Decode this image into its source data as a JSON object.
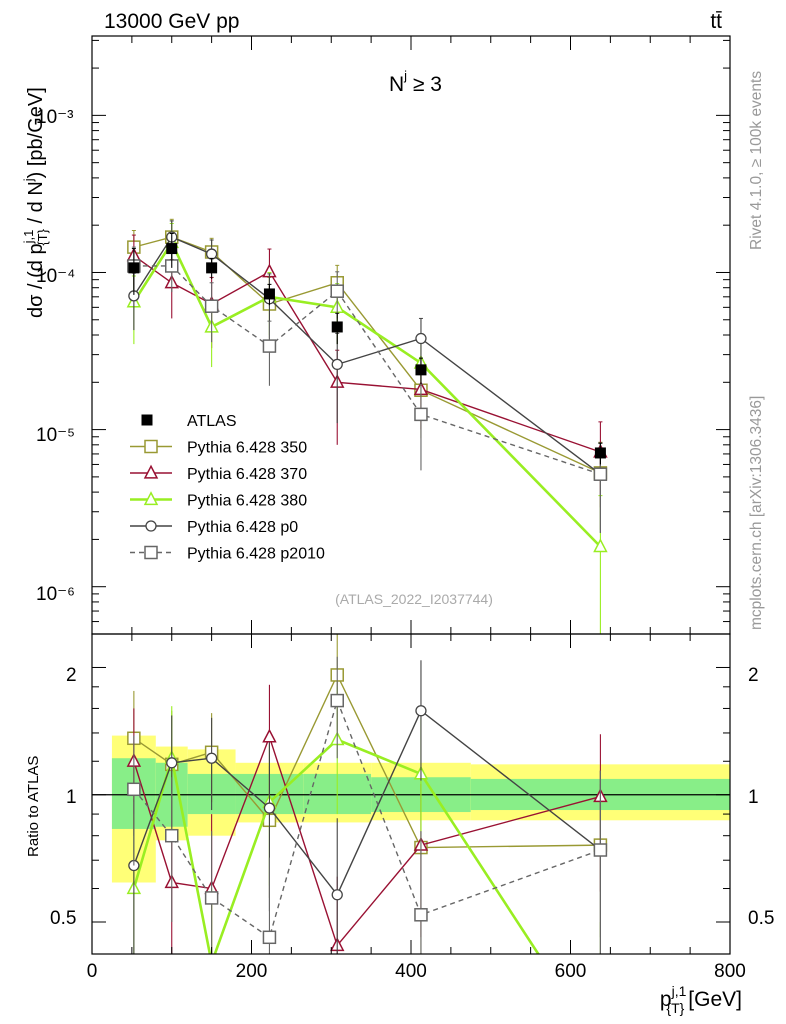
{
  "header": {
    "process": "13000 GeV pp",
    "process_label": "tt̄",
    "channel_label": "N",
    "channel_sup": "j",
    "channel_cond": " ≥ 3"
  },
  "side_labels": {
    "rivet": "Rivet 4.1.0, ≥ 100k events",
    "mcplots": "mcplots.cern.ch [arXiv:1306.3436]"
  },
  "analysis_id": "(ATLAS_2022_I2037744)",
  "axes": {
    "main_ylabel": "dσ / (d p_{T}^{j,1} / d N^{j}) [pb/GeV]",
    "ratio_ylabel": "Ratio to ATLAS",
    "xlabel": "p_{T}^{j,1} [GeV]",
    "x_ticks": [
      "0",
      "200",
      "400",
      "600",
      "800"
    ],
    "main_ticks": [
      "10⁻³",
      "10⁻⁴",
      "10⁻⁵",
      "10⁻⁶"
    ],
    "ratio_ticks": [
      "2",
      "1",
      "0.5"
    ]
  },
  "chart_data": [
    {
      "type": "line",
      "title": "N^j ≥ 3",
      "xlabel": "p_T^{j,1} [GeV]",
      "ylabel": "dσ / (d p_T^{j,1} / d N^j) [pb/GeV]",
      "yscale": "log",
      "xlim": [
        0,
        800
      ],
      "ylim": [
        5e-07,
        0.0032
      ],
      "legend": "middle-left",
      "bins": [
        [
          25,
          80
        ],
        [
          80,
          120
        ],
        [
          120,
          180
        ],
        [
          180,
          265
        ],
        [
          265,
          350
        ],
        [
          350,
          475
        ],
        [
          475,
          800
        ]
      ],
      "x": [
        52.5,
        100,
        150,
        222.5,
        307.5,
        412.5,
        637.5
      ],
      "series": [
        {
          "name": "ATLAS",
          "values": [
            0.000107,
            0.000142,
            0.000107,
            7.3e-05,
            4.5e-05,
            2.4e-05,
            7.1e-06
          ],
          "err": [
            3.5e-05,
            3.5e-05,
            1.6e-05,
            1.1e-05,
            1e-05,
            4.5e-06,
            1.1e-06
          ],
          "color": "#000000",
          "marker": "filled-square"
        },
        {
          "name": "Pythia 6.428 350",
          "values": [
            0.000145,
            0.000168,
            0.000135,
            6.3e-05,
            8.6e-05,
            1.78e-05,
            5.3e-06
          ],
          "err": [
            4e-05,
            5e-05,
            3e-05,
            3e-05,
            2.5e-05,
            9e-06,
            3e-06
          ],
          "color": "#999933",
          "marker": "open-square"
        },
        {
          "name": "Pythia 6.428 370",
          "values": [
            0.000128,
            8.6e-05,
            6.3e-05,
            0.000101,
            2e-05,
            1.8e-05,
            7.2e-06
          ],
          "err": [
            4.5e-05,
            3.5e-05,
            3e-05,
            4e-05,
            1.2e-05,
            8e-06,
            4e-06
          ],
          "color": "#991133",
          "marker": "open-triangle"
        },
        {
          "name": "Pythia 6.428 380",
          "values": [
            6.5e-05,
            0.000155,
            4.5e-05,
            7e-05,
            6e-05,
            2.65e-05,
            1.8e-06
          ],
          "err": [
            3e-05,
            5e-05,
            2e-05,
            3e-05,
            2.5e-05,
            1e-05,
            2e-06
          ],
          "color": "#99ee22",
          "marker": "open-triangle"
        },
        {
          "name": "Pythia 6.428 p0",
          "values": [
            7.1e-05,
            0.000168,
            0.000131,
            6.8e-05,
            2.6e-05,
            3.8e-05,
            5.2e-06
          ],
          "err": [
            2.8e-05,
            4.5e-05,
            3e-05,
            3e-05,
            1.5e-05,
            1.3e-05,
            3e-06
          ],
          "color": "#444444",
          "marker": "open-circle"
        },
        {
          "name": "Pythia 6.428 p2010",
          "values": [
            0.00011,
            0.00011,
            6.1e-05,
            3.4e-05,
            7.6e-05,
            1.25e-05,
            5.2e-06
          ],
          "err": [
            3.5e-05,
            3.5e-05,
            2.5e-05,
            1.5e-05,
            2.5e-05,
            7e-06,
            3e-06
          ],
          "color": "#666666",
          "marker": "open-square",
          "dashed": true
        }
      ]
    },
    {
      "type": "line",
      "title": "Ratio to ATLAS",
      "ylabel": "Ratio to ATLAS",
      "yscale": "log",
      "xlim": [
        0,
        800
      ],
      "ylim": [
        0.42,
        2.4
      ],
      "reference_band": {
        "bins": [
          [
            25,
            80
          ],
          [
            80,
            120
          ],
          [
            120,
            180
          ],
          [
            180,
            265
          ],
          [
            265,
            350
          ],
          [
            350,
            475
          ],
          [
            475,
            800
          ]
        ],
        "stat": [
          [
            0.83,
            1.22
          ],
          [
            0.84,
            1.19
          ],
          [
            0.9,
            1.12
          ],
          [
            0.9,
            1.12
          ],
          [
            0.9,
            1.12
          ],
          [
            0.91,
            1.1
          ],
          [
            0.92,
            1.09
          ]
        ],
        "total": [
          [
            0.62,
            1.38
          ],
          [
            0.78,
            1.3
          ],
          [
            0.8,
            1.28
          ],
          [
            0.86,
            1.19
          ],
          [
            0.86,
            1.19
          ],
          [
            0.87,
            1.19
          ],
          [
            0.87,
            1.18
          ]
        ]
      },
      "series": [
        {
          "name": "Pythia 6.428 350",
          "values": [
            1.36,
            1.18,
            1.26,
            0.87,
            1.92,
            0.75,
            0.76
          ],
          "err": [
            0.4,
            0.4,
            0.3,
            0.3,
            0.5,
            0.35,
            0.3
          ]
        },
        {
          "name": "Pythia 6.428 370",
          "values": [
            1.2,
            0.62,
            0.6,
            1.37,
            0.44,
            0.76,
            0.99
          ],
          "err": [
            0.4,
            0.3,
            0.3,
            0.45,
            0.2,
            0.3,
            0.4
          ]
        },
        {
          "name": "Pythia 6.428 380",
          "values": [
            0.6,
            1.22,
            0.4,
            0.96,
            1.35,
            1.12,
            0.25
          ],
          "err": [
            0.3,
            0.4,
            0.2,
            0.35,
            0.45,
            0.4,
            0.25
          ]
        },
        {
          "name": "Pythia 6.428 p0",
          "values": [
            0.68,
            1.19,
            1.22,
            0.93,
            0.58,
            1.58,
            0.74
          ],
          "err": [
            0.3,
            0.35,
            0.3,
            0.4,
            0.3,
            0.5,
            0.4
          ]
        },
        {
          "name": "Pythia 6.428 p2010",
          "values": [
            1.03,
            0.8,
            0.57,
            0.46,
            1.67,
            0.52,
            0.74
          ],
          "err": [
            0.35,
            0.3,
            0.25,
            0.25,
            0.45,
            0.3,
            0.4
          ]
        }
      ]
    }
  ]
}
